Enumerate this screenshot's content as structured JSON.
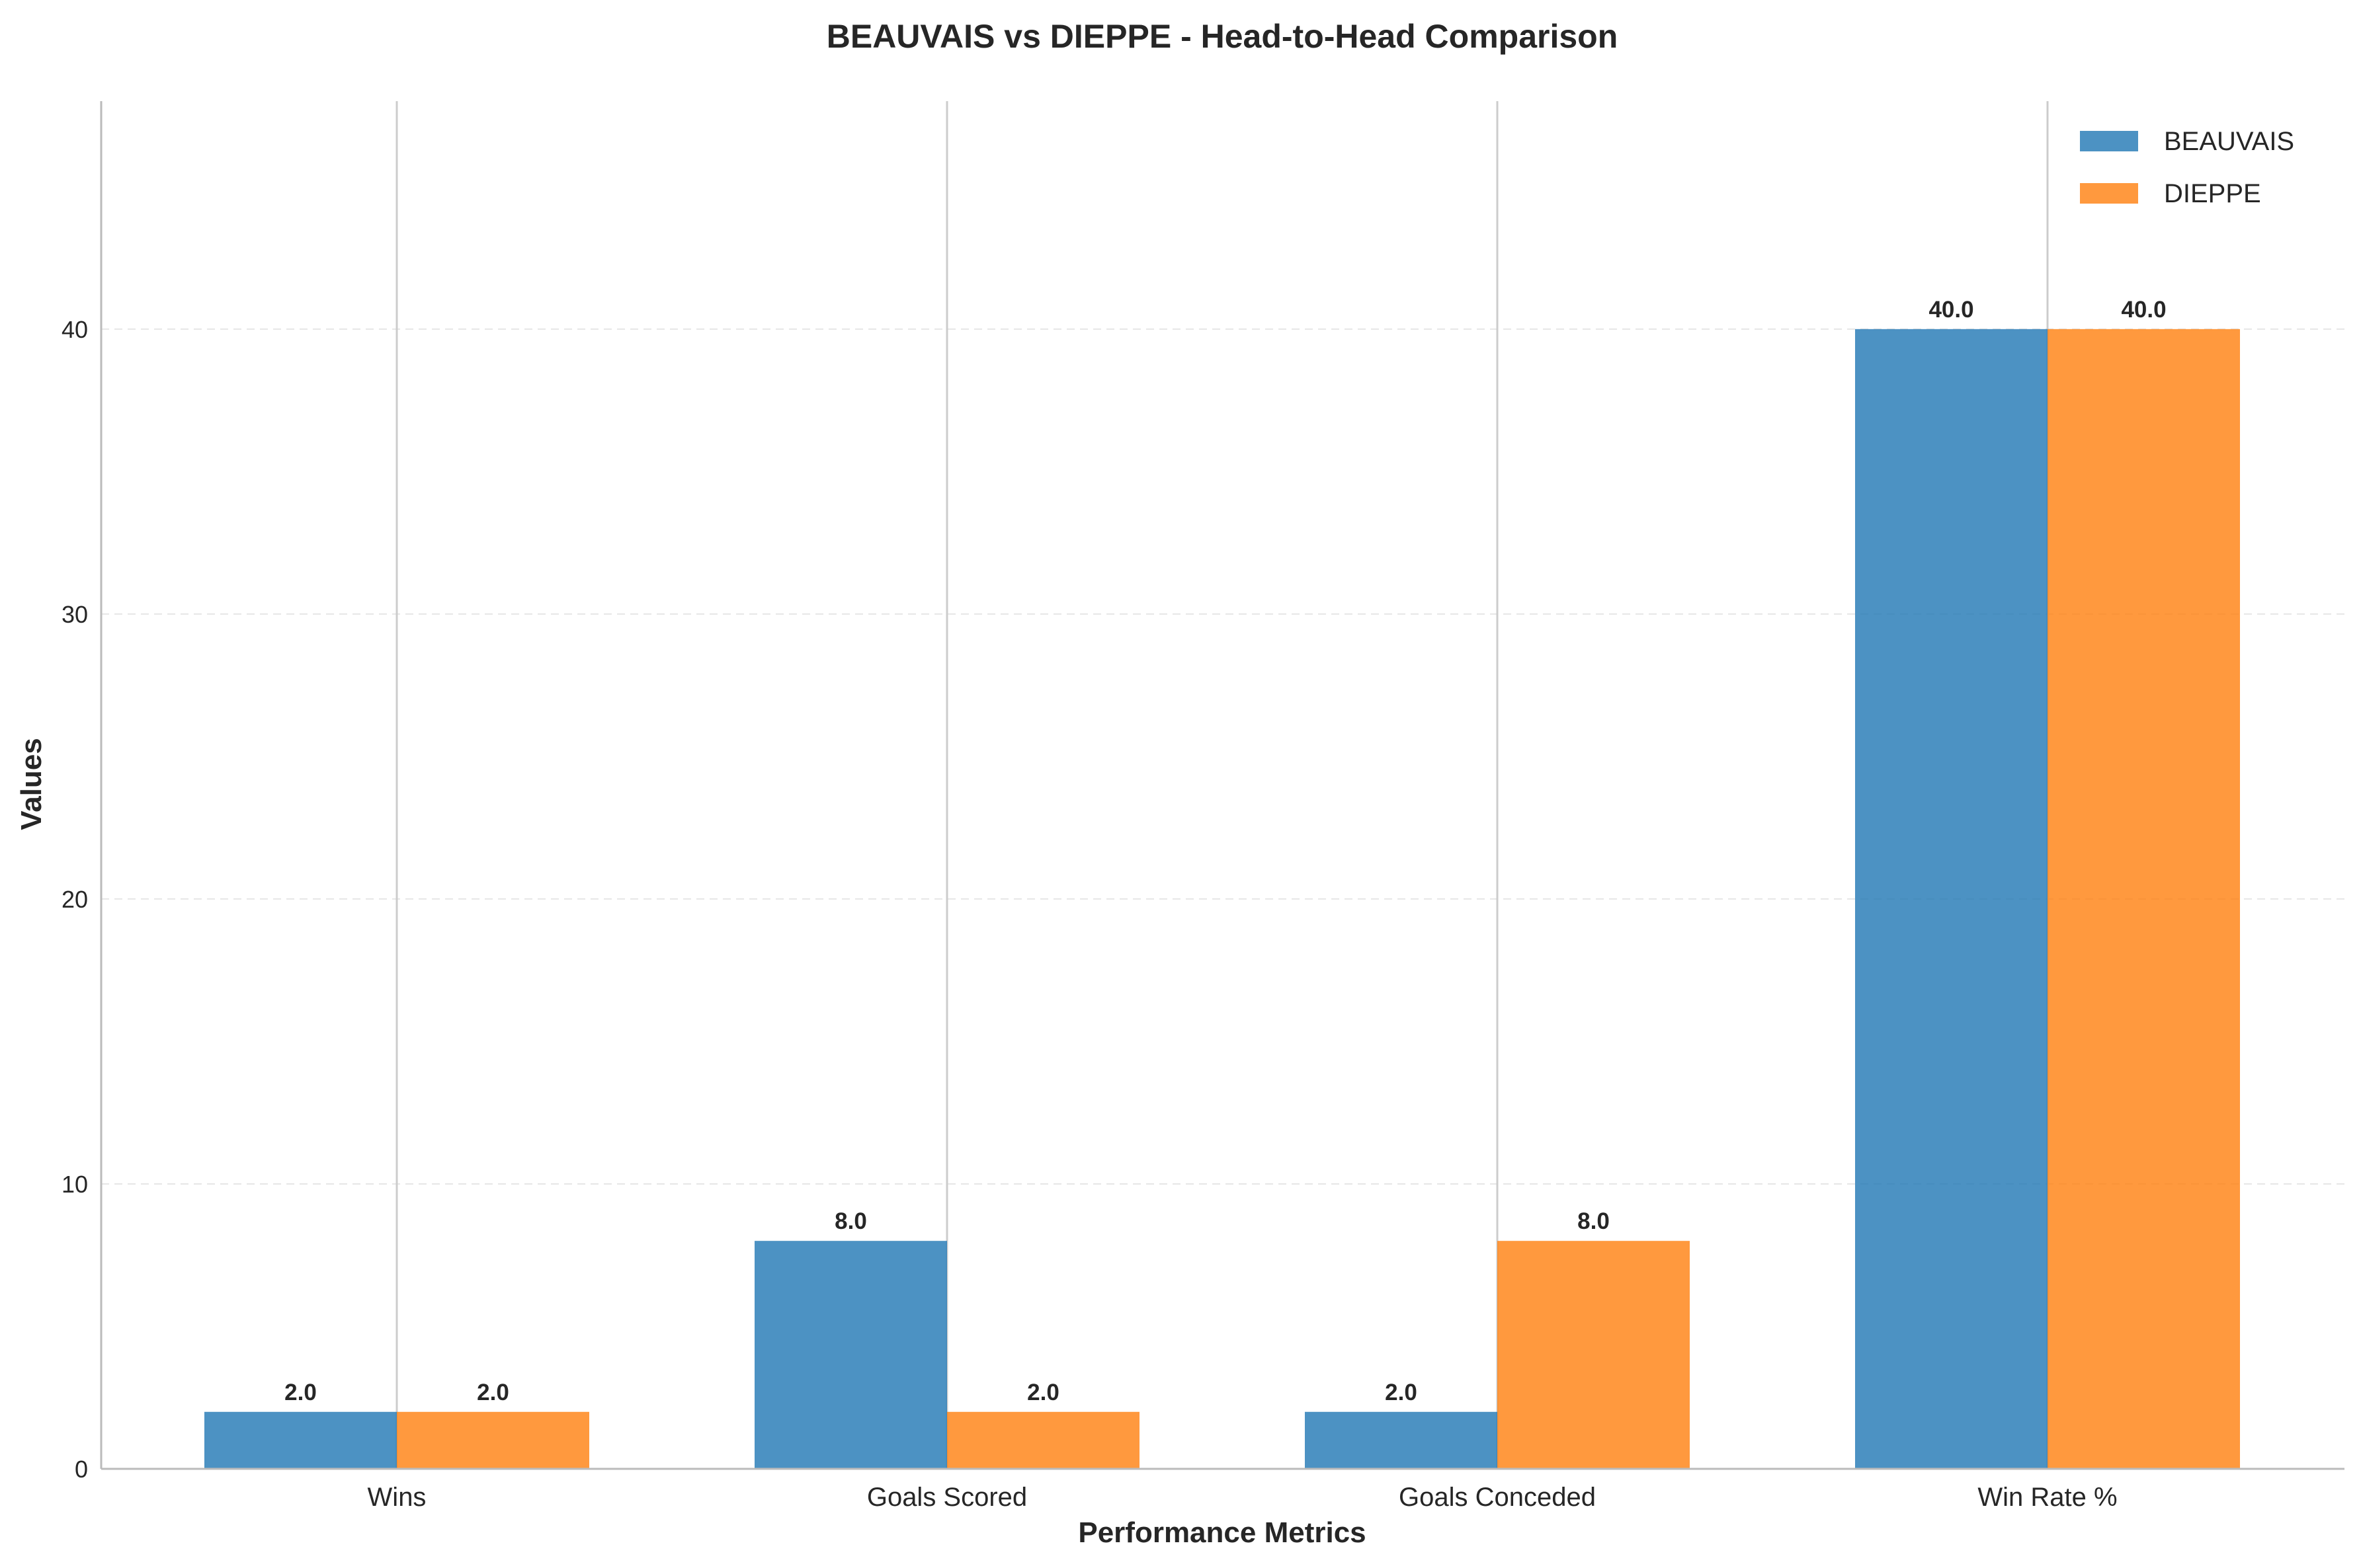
{
  "chart_data": {
    "type": "bar",
    "title": "BEAUVAIS vs DIEPPE - Head-to-Head Comparison",
    "xlabel": "Performance Metrics",
    "ylabel": "Values",
    "categories": [
      "Wins",
      "Goals Scored",
      "Goals Conceded",
      "Win Rate %"
    ],
    "series": [
      {
        "name": "BEAUVAIS",
        "values": [
          2.0,
          8.0,
          2.0,
          40.0
        ],
        "color": "#1f77b4",
        "value_labels": [
          "2.0",
          "8.0",
          "2.0",
          "40.0"
        ]
      },
      {
        "name": "DIEPPE",
        "values": [
          2.0,
          2.0,
          8.0,
          40.0
        ],
        "color": "#ff7f0e",
        "value_labels": [
          "2.0",
          "2.0",
          "8.0",
          "40.0"
        ]
      }
    ],
    "ylim": [
      0,
      48
    ],
    "yticks": [
      0,
      10,
      20,
      30,
      40
    ],
    "ytick_labels": [
      "0",
      "10",
      "20",
      "30",
      "40"
    ],
    "grid": "horizontal dashed",
    "legend_position": "top-right"
  }
}
